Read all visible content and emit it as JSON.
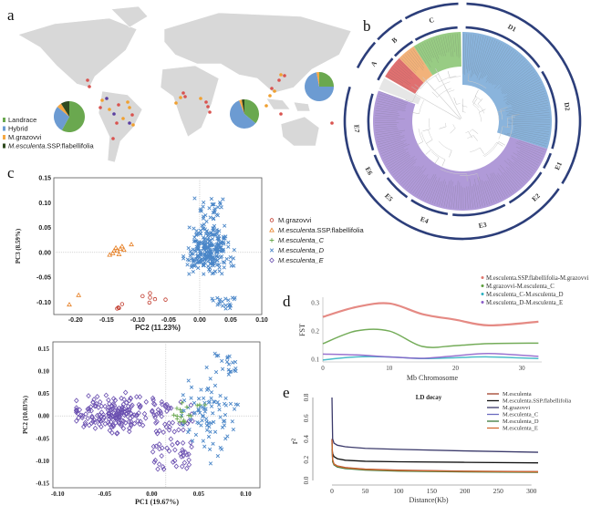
{
  "panels": {
    "a": "a",
    "b": "b",
    "c": "c",
    "d": "d",
    "e": "e"
  },
  "colors": {
    "landrace": "#6aa84f",
    "hybrid": "#6c9bd2",
    "grazovvi": "#f5a742",
    "ssp": "#2f4a1f",
    "sample_red": "#d9534f",
    "sample_orange": "#f0a030",
    "sample_purple": "#5b3fa0",
    "ring": "#2c3e7a"
  },
  "map": {
    "legend": [
      {
        "label": "Landrace",
        "color": "#6aa84f",
        "italic_prefix": ""
      },
      {
        "label": "Hybrid",
        "color": "#6c9bd2",
        "italic_prefix": ""
      },
      {
        "label": "M.grazovvi",
        "color": "#f5a742",
        "italic_prefix": ""
      },
      {
        "label": ".SSP.flabellifolia",
        "color": "#2f4a1f",
        "italic_prefix": "M.esculenta"
      }
    ],
    "pies": [
      {
        "region": "Americas",
        "values": [
          58,
          28,
          5,
          9
        ]
      },
      {
        "region": "Africa",
        "values": [
          36,
          58,
          3,
          3
        ]
      },
      {
        "region": "Asia",
        "values": [
          25,
          72,
          3,
          0
        ]
      }
    ]
  },
  "tree": {
    "clades": [
      {
        "label": "A",
        "color": "#e07070",
        "from": 300,
        "to": 315
      },
      {
        "label": "B",
        "color": "#f2b27a",
        "from": 315,
        "to": 327
      },
      {
        "label": "C",
        "color": "#98cc84",
        "from": 327,
        "to": 359
      },
      {
        "label": "D",
        "color": "#8ab4dc",
        "from": 0,
        "to": 108
      },
      {
        "label": "E",
        "color": "#b09ad8",
        "from": 108,
        "to": 290
      }
    ],
    "inner_ring": [
      {
        "label": "A",
        "from": 296,
        "to": 312,
        "mid": 303
      },
      {
        "label": "B",
        "from": 314,
        "to": 328,
        "mid": 320
      },
      {
        "label": "C",
        "from": 330,
        "to": 357,
        "mid": 343
      },
      {
        "label": "D1",
        "from": 2,
        "to": 55,
        "mid": 28
      },
      {
        "label": "D2",
        "from": 58,
        "to": 107,
        "mid": 82
      },
      {
        "label": "E1",
        "from": 110,
        "to": 120,
        "mid": 115
      },
      {
        "label": "E2",
        "from": 123,
        "to": 150,
        "mid": 136
      },
      {
        "label": "E3",
        "from": 153,
        "to": 186,
        "mid": 169
      },
      {
        "label": "E4",
        "from": 189,
        "to": 213,
        "mid": 201
      },
      {
        "label": "E5",
        "from": 216,
        "to": 233,
        "mid": 224
      },
      {
        "label": "E6",
        "from": 236,
        "to": 249,
        "mid": 242
      },
      {
        "label": "E7",
        "from": 252,
        "to": 287,
        "mid": 266
      }
    ],
    "outer_ring": [
      {
        "from": 297,
        "to": 312
      },
      {
        "from": 314,
        "to": 329
      },
      {
        "from": 331,
        "to": 358
      },
      {
        "from": 2,
        "to": 122
      },
      {
        "from": 125,
        "to": 287
      }
    ]
  },
  "chart_data": [
    {
      "id": "c-top",
      "type": "scatter",
      "xlabel": "PC2 (11.23%)",
      "ylabel": "PC3 (8.59%)",
      "xlim": [
        -0.235,
        0.1
      ],
      "ylim": [
        -0.125,
        0.15
      ],
      "xticks": [
        "-0.20",
        "-0.15",
        "-0.10",
        "-0.05",
        "0.00",
        "0.05",
        "0.10"
      ],
      "yticks": [
        "0.15",
        "0.10",
        "0.05",
        "0.00",
        "-0.05",
        "-0.10"
      ],
      "legend": [
        {
          "label": "M.grazovvi",
          "italic": false,
          "marker": "circle",
          "color": "#c0392b"
        },
        {
          "label": "M.esculenta",
          "suffix": ".SSP.flabellifolia",
          "italic": true,
          "marker": "triangle",
          "color": "#e67e22"
        },
        {
          "label": "M.esculenta_C",
          "italic": true,
          "marker": "plus",
          "color": "#6aa84f"
        },
        {
          "label": "M.esculenta_D",
          "italic": true,
          "marker": "x",
          "color": "#4a86c8"
        },
        {
          "label": "M.esculenta_E",
          "italic": true,
          "marker": "diamond",
          "color": "#6a4fb0"
        }
      ],
      "series": [
        {
          "name": "M.grazovvi",
          "points": [
            [
              -0.133,
              -0.113
            ],
            [
              -0.131,
              -0.111
            ],
            [
              -0.13,
              -0.112
            ],
            [
              -0.125,
              -0.104
            ],
            [
              -0.092,
              -0.088
            ],
            [
              -0.08,
              -0.082
            ],
            [
              -0.08,
              -0.091
            ],
            [
              -0.081,
              -0.101
            ],
            [
              -0.072,
              -0.094
            ],
            [
              -0.055,
              -0.095
            ]
          ]
        },
        {
          "name": "M.esculenta.SSP.flabellifolia",
          "points": [
            [
              -0.21,
              -0.105
            ],
            [
              -0.195,
              -0.086
            ],
            [
              -0.145,
              -0.005
            ],
            [
              -0.14,
              -0.002
            ],
            [
              -0.138,
              0.003
            ],
            [
              -0.135,
              0.009
            ],
            [
              -0.133,
              0.004
            ],
            [
              -0.13,
              -0.004
            ],
            [
              -0.128,
              0.007
            ],
            [
              -0.125,
              0.012
            ],
            [
              -0.122,
              0.005
            ],
            [
              -0.11,
              0.016
            ]
          ]
        },
        {
          "name": "M.esculenta_D",
          "center": [
            0.015,
            0.0
          ],
          "spread": [
            0.03,
            0.045
          ]
        }
      ]
    },
    {
      "id": "c-bottom",
      "type": "scatter",
      "xlabel": "PC1 (19.67%)",
      "ylabel": "PC2 (10.03%)",
      "xlim": [
        -0.105,
        0.115
      ],
      "ylim": [
        -0.16,
        0.165
      ],
      "xticks": [
        "-0.10",
        "-0.05",
        "0.00",
        "0.05",
        "0.10"
      ],
      "yticks": [
        "0.15",
        "0.10",
        "0.05",
        "0.00",
        "-0.05",
        "-0.10",
        "-0.15"
      ],
      "series": [
        {
          "name": "M.esculenta_E",
          "center": [
            -0.04,
            0.005
          ],
          "spread": [
            0.03,
            0.03
          ]
        },
        {
          "name": "M.esculenta_D",
          "center": [
            0.06,
            0.0
          ],
          "spread": [
            0.02,
            0.06
          ]
        },
        {
          "name": "M.esculenta_C",
          "center": [
            0.035,
            0.01
          ],
          "spread": [
            0.015,
            0.025
          ]
        }
      ]
    },
    {
      "id": "d",
      "type": "line",
      "xlabel": "Mb Chromosome",
      "ylabel": "FST",
      "xlim": [
        0,
        33
      ],
      "ylim": [
        0.09,
        0.32
      ],
      "xticks": [
        0,
        10,
        20,
        30
      ],
      "yticks": [
        0.1,
        0.2,
        0.3
      ],
      "x": [
        0,
        5,
        10,
        15,
        20,
        25,
        32.5
      ],
      "series": [
        {
          "name": "M.esculenta.SSP.flabellifolia-M.grazovvi",
          "color": "#e0766e",
          "values": [
            0.25,
            0.285,
            0.298,
            0.26,
            0.24,
            0.22,
            0.233
          ]
        },
        {
          "name": "M.grazovvi-M.esculenta_C",
          "color": "#5c9e3c",
          "values": [
            0.155,
            0.2,
            0.2,
            0.145,
            0.148,
            0.155,
            0.157
          ]
        },
        {
          "name": "M.esculenta_C-M.esculenta_D",
          "color": "#2ab0c0",
          "values": [
            0.097,
            0.108,
            0.108,
            0.102,
            0.105,
            0.108,
            0.102
          ]
        },
        {
          "name": "M.esculenta_D-M.esculenta_E",
          "color": "#8a5cc8",
          "values": [
            0.118,
            0.115,
            0.108,
            0.103,
            0.112,
            0.12,
            0.11
          ]
        }
      ]
    },
    {
      "id": "e",
      "type": "line",
      "title": "LD decay",
      "xlabel": "Distance(Kb)",
      "ylabel": "r²",
      "xlim": [
        0,
        310
      ],
      "ylim": [
        0,
        0.8
      ],
      "xticks": [
        0,
        50,
        100,
        150,
        200,
        250,
        300
      ],
      "yticks": [
        "0.0",
        "0.2",
        "0.4",
        "0.6",
        "0.8"
      ],
      "x": [
        0,
        1,
        3,
        8,
        20,
        50,
        100,
        200,
        310
      ],
      "series": [
        {
          "name": "M.esculenta",
          "color": "#a0402a",
          "values": [
            0.4,
            0.2,
            0.16,
            0.14,
            0.125,
            0.11,
            0.1,
            0.09,
            0.085
          ]
        },
        {
          "name": "M.esculenta.SSP.flabellifolia",
          "color": "#111111",
          "values": [
            0.3,
            0.26,
            0.23,
            0.21,
            0.195,
            0.185,
            0.18,
            0.175,
            0.17
          ]
        },
        {
          "name": "M.grazovvi",
          "color": "#3b3a6b",
          "values": [
            0.8,
            0.4,
            0.36,
            0.34,
            0.325,
            0.31,
            0.3,
            0.285,
            0.272
          ]
        },
        {
          "name": "M.esculenta_C",
          "color": "#6b6bc0",
          "values": [
            0.38,
            0.19,
            0.155,
            0.135,
            0.12,
            0.105,
            0.095,
            0.087,
            0.082
          ]
        },
        {
          "name": "M.esculenta_D",
          "color": "#3a7a3a",
          "values": [
            0.36,
            0.18,
            0.15,
            0.13,
            0.115,
            0.1,
            0.09,
            0.083,
            0.078
          ]
        },
        {
          "name": "M.esculenta_E",
          "color": "#d06a30",
          "values": [
            0.39,
            0.2,
            0.158,
            0.138,
            0.122,
            0.107,
            0.097,
            0.088,
            0.083
          ]
        }
      ]
    }
  ]
}
